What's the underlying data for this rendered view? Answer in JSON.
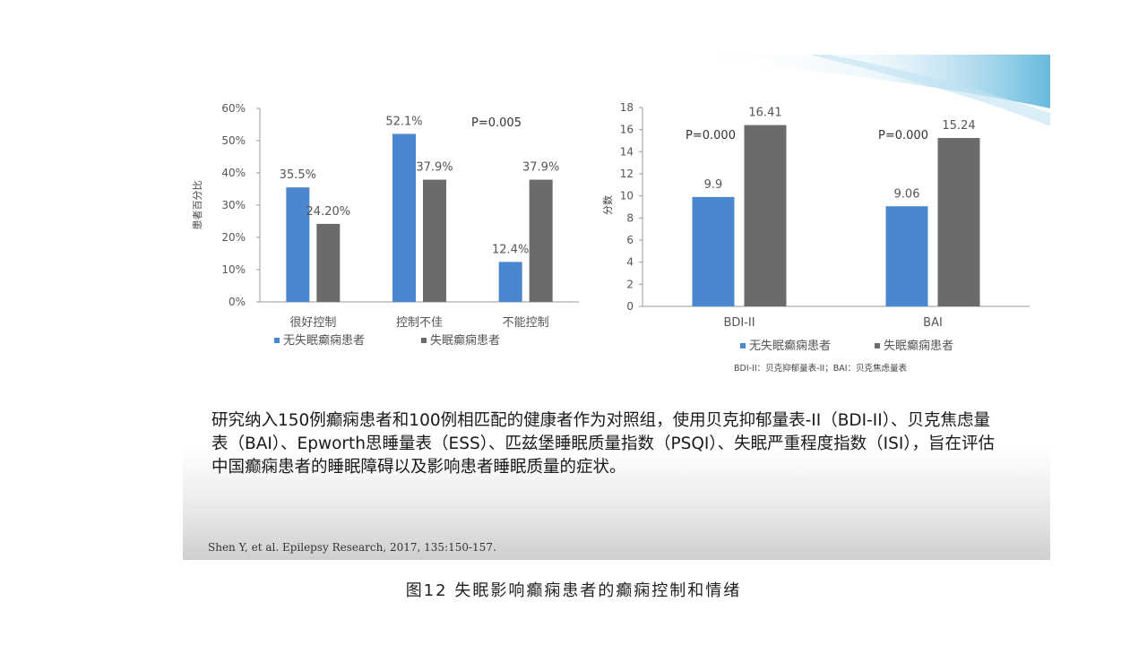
{
  "chart_data": [
    {
      "type": "bar",
      "ylabel": "患者百分比",
      "ylim": [
        0,
        60
      ],
      "yticks": [
        "0%",
        "10%",
        "20%",
        "30%",
        "40%",
        "50%",
        "60%"
      ],
      "categories": [
        "很好控制",
        "控制不佳",
        "不能控制"
      ],
      "series": [
        {
          "name": "无失眠癫痫患者",
          "values": [
            35.5,
            52.1,
            12.4
          ],
          "labels": [
            "35.5%",
            "52.1%",
            "12.4%"
          ],
          "color": "#4a87cf"
        },
        {
          "name": "失眠癫痫患者",
          "values": [
            24.2,
            37.9,
            37.9
          ],
          "labels": [
            "24.20%",
            "37.9%",
            "37.9%"
          ],
          "color": "#6b6b6b"
        }
      ],
      "annotations": [
        "P=0.005"
      ],
      "legend": "bottom",
      "grid": false
    },
    {
      "type": "bar",
      "ylabel": "分数",
      "ylim": [
        0,
        18
      ],
      "yticks": [
        "0",
        "2",
        "4",
        "6",
        "8",
        "10",
        "12",
        "14",
        "16",
        "18"
      ],
      "categories": [
        "BDI-II",
        "BAI"
      ],
      "series": [
        {
          "name": "无失眠癫痫患者",
          "values": [
            9.9,
            9.06
          ],
          "labels": [
            "9.9",
            "9.06"
          ],
          "color": "#4a87cf"
        },
        {
          "name": "失眠癫痫患者",
          "values": [
            16.41,
            15.24
          ],
          "labels": [
            "16.41",
            "15.24"
          ],
          "color": "#6b6b6b"
        }
      ],
      "annotations": [
        "P=0.000",
        "P=0.000"
      ],
      "footnote": "BDI-II：贝克抑郁量表-II；BAI：贝克焦虑量表",
      "legend": "bottom",
      "grid": false
    }
  ],
  "body_text": "研究纳入150例癫痫患者和100例相匹配的健康者作为对照组，使用贝克抑郁量表-II（BDI-II）、贝克焦虑量表（BAI）、Epworth思睡量表（ESS）、匹兹堡睡眠质量指数（PSQI）、失眠严重程度指数（ISI），旨在评估中国癫痫患者的睡眠障碍以及影响患者睡眠质量的症状。",
  "citation": "Shen Y, et al. Epilepsy Research, 2017, 135:150-157.",
  "caption": "图12 失眠影响癫痫患者的癫痫控制和情绪"
}
